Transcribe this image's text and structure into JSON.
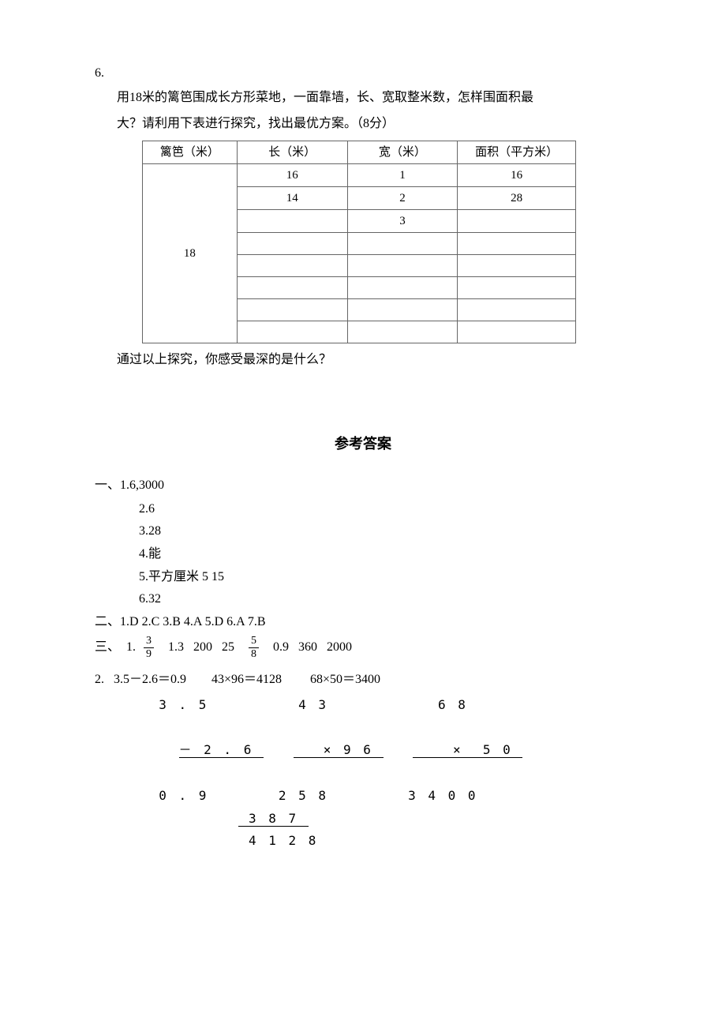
{
  "question": {
    "number": "6.",
    "text_line1": "用18米的篱笆围成长方形菜地，一面靠墙，长、宽取整米数，怎样围面积最",
    "text_line2": "大？请利用下表进行探究，找出最优方案。（8分）",
    "after_text": "通过以上探究，你感受最深的是什么？"
  },
  "table": {
    "headers": {
      "fence": "篱笆（米）",
      "length": "长（米）",
      "width": "宽（米）",
      "area": "面积（平方米）"
    },
    "fence_value": "18",
    "rows": [
      {
        "length": "16",
        "width": "1",
        "area": "16"
      },
      {
        "length": "14",
        "width": "2",
        "area": "28"
      },
      {
        "length": "",
        "width": "3",
        "area": ""
      },
      {
        "length": "",
        "width": "",
        "area": ""
      },
      {
        "length": "",
        "width": "",
        "area": ""
      },
      {
        "length": "",
        "width": "",
        "area": ""
      },
      {
        "length": "",
        "width": "",
        "area": ""
      },
      {
        "length": "",
        "width": "",
        "area": ""
      }
    ]
  },
  "answers": {
    "title": "参考答案",
    "section1": {
      "prefix": "一、",
      "items": [
        "1.6,3000",
        "2.6",
        "3.28",
        "4.能",
        "5.平方厘米   5   15",
        "6.32"
      ]
    },
    "section2": {
      "prefix": "二、",
      "text": "1.D  2.C  3.B  4.A  5.D  6.A  7.B"
    },
    "section3": {
      "prefix": "三、",
      "item1_prefix": "1.",
      "frac1_top": "3",
      "frac1_bottom": "9",
      "mid_values": "  1.3   200   25  ",
      "frac2_top": "5",
      "frac2_bottom": "8",
      "after_values": "  0.9   360   2000"
    },
    "calc": {
      "header": "2.   3.5－2.6＝0.9        43×96＝4128         68×50＝3400",
      "row1": "  3 . 5         4 3           6 8",
      "row2_a": "－ 2 . 6 ",
      "row2_b": "   × 9 6 ",
      "row2_c": "    ×  5 0 ",
      "row3": "  0 . 9       2 5 8        3 4 0 0",
      "row4": " 3 8 7 ",
      "row5": "           4 1 2 8"
    }
  }
}
